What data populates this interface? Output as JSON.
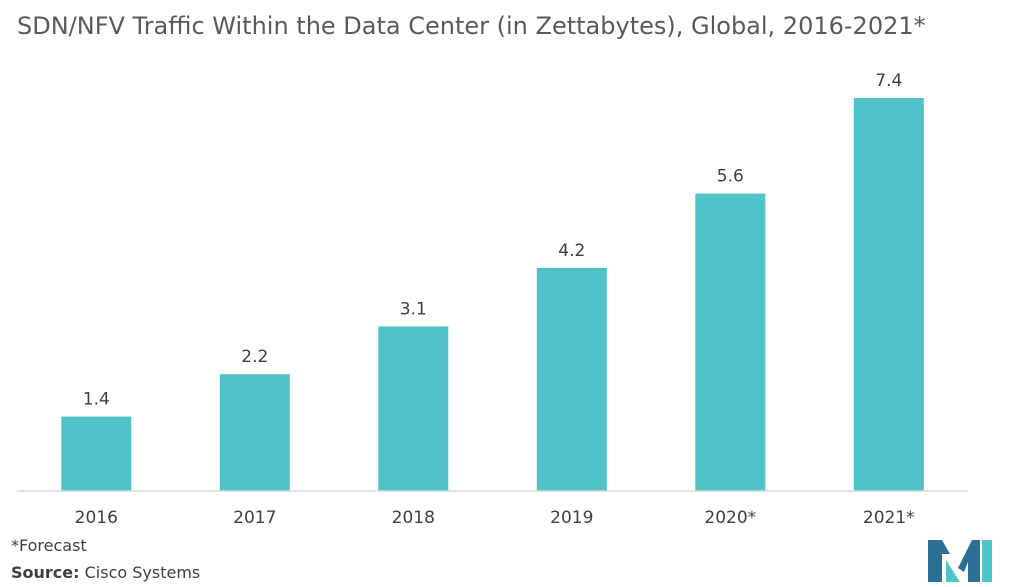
{
  "chart_data": {
    "type": "bar",
    "title": "SDN/NFV Traffic Within the Data Center (in Zettabytes), Global, 2016-2021*",
    "categories": [
      "2016",
      "2017",
      "2018",
      "2019",
      "2020*",
      "2021*"
    ],
    "values": [
      1.4,
      2.2,
      3.1,
      4.2,
      5.6,
      7.4
    ],
    "value_labels": [
      "1.4",
      "2.2",
      "3.1",
      "4.2",
      "5.6",
      "7.4"
    ],
    "xlabel": "",
    "ylabel": "",
    "ylim": [
      0,
      7.4
    ],
    "grid": false,
    "legend": "none",
    "bar_color": "#4fc3c8",
    "axis_color": "#d9d9d9"
  },
  "footnote": "*Forecast",
  "source": {
    "label": "Source:",
    "text": "Cisco Systems"
  },
  "logo": {
    "icon": "mordor-intelligence-logo-icon",
    "colors": [
      "#2b6f95",
      "#4fc3c8"
    ]
  }
}
